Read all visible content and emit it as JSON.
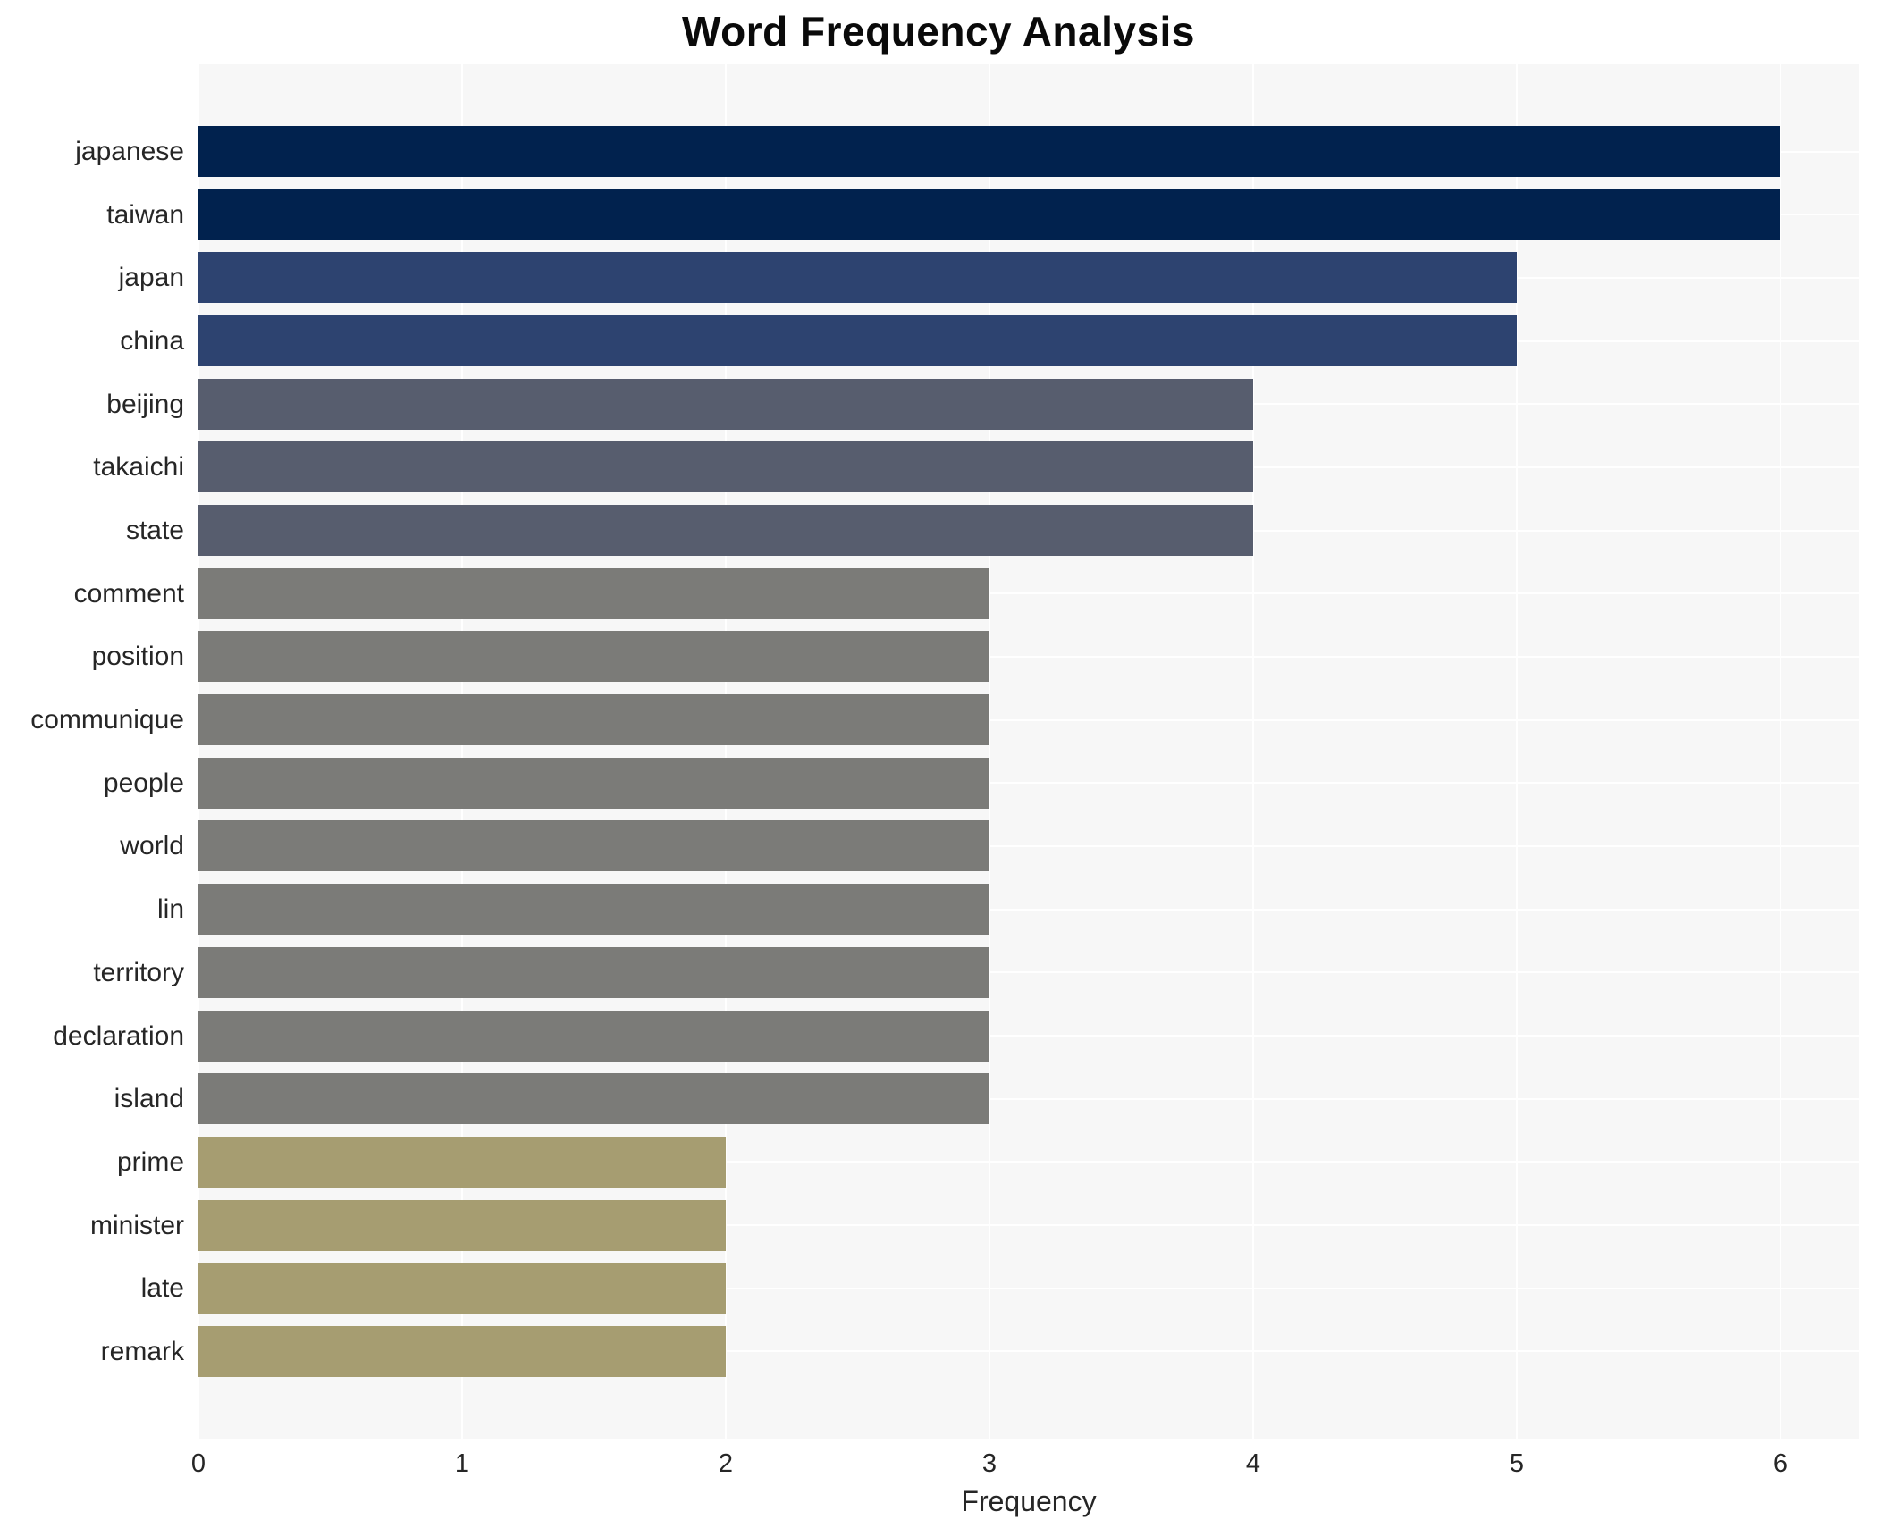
{
  "title": "Word Frequency Analysis",
  "chart_data": {
    "type": "bar",
    "orientation": "horizontal",
    "title": "Word Frequency Analysis",
    "xlabel": "Frequency",
    "ylabel": "",
    "categories": [
      "japanese",
      "taiwan",
      "japan",
      "china",
      "beijing",
      "takaichi",
      "state",
      "comment",
      "position",
      "communique",
      "people",
      "world",
      "lin",
      "territory",
      "declaration",
      "island",
      "prime",
      "minister",
      "late",
      "remark"
    ],
    "values": [
      6,
      6,
      5,
      5,
      4,
      4,
      4,
      3,
      3,
      3,
      3,
      3,
      3,
      3,
      3,
      3,
      2,
      2,
      2,
      2
    ],
    "bar_colors": [
      "#01224e",
      "#01224e",
      "#2d4370",
      "#2d4370",
      "#575d6e",
      "#575d6e",
      "#575d6e",
      "#7b7b78",
      "#7b7b78",
      "#7b7b78",
      "#7b7b78",
      "#7b7b78",
      "#7b7b78",
      "#7b7b78",
      "#7b7b78",
      "#7b7b78",
      "#a69d71",
      "#a69d71",
      "#a69d71",
      "#a69d71"
    ],
    "xticks": [
      0,
      1,
      2,
      3,
      4,
      5,
      6
    ],
    "xlim": [
      0,
      6.3
    ],
    "grid": true,
    "legend_position": "none",
    "plot_background": "#f7f7f7",
    "grid_color": "#ffffff",
    "tick_text_color": "#262626",
    "title_color": "#0a0a0a"
  }
}
